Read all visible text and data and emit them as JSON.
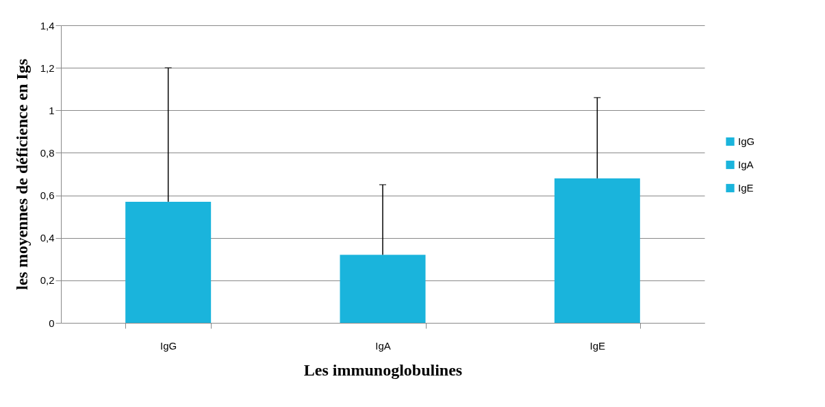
{
  "chart_data": {
    "type": "bar",
    "xlabel": "Les immunoglobulines",
    "ylabel": "les moyennes de déficience en Igs",
    "categories": [
      "IgG",
      "IgA",
      "IgE"
    ],
    "series": [
      {
        "name": "IgG",
        "color": "#1ab4dc",
        "values": [
          0.57,
          null,
          null
        ],
        "errors": [
          [
            0.57,
            1.2
          ],
          null,
          null
        ]
      },
      {
        "name": "IgA",
        "color": "#1ab4dc",
        "values": [
          null,
          0.32,
          null
        ],
        "errors": [
          null,
          [
            0.32,
            0.65
          ],
          null
        ]
      },
      {
        "name": "IgE",
        "color": "#1ab4dc",
        "values": [
          null,
          null,
          0.68
        ],
        "errors": [
          null,
          null,
          [
            0.68,
            1.06
          ]
        ]
      }
    ],
    "ylim": [
      0,
      1.4
    ],
    "yticks": [
      0,
      {
        "value": 0.2,
        "label": "0,2"
      },
      {
        "value": 0.4,
        "label": "0,4"
      },
      {
        "value": 0.6,
        "label": "0,6"
      },
      {
        "value": 0.8,
        "label": "0,8"
      },
      1,
      {
        "value": 1.2,
        "label": "1,2"
      },
      {
        "value": 1.4,
        "label": "1,4"
      }
    ],
    "grid": "y",
    "legend": "right"
  }
}
